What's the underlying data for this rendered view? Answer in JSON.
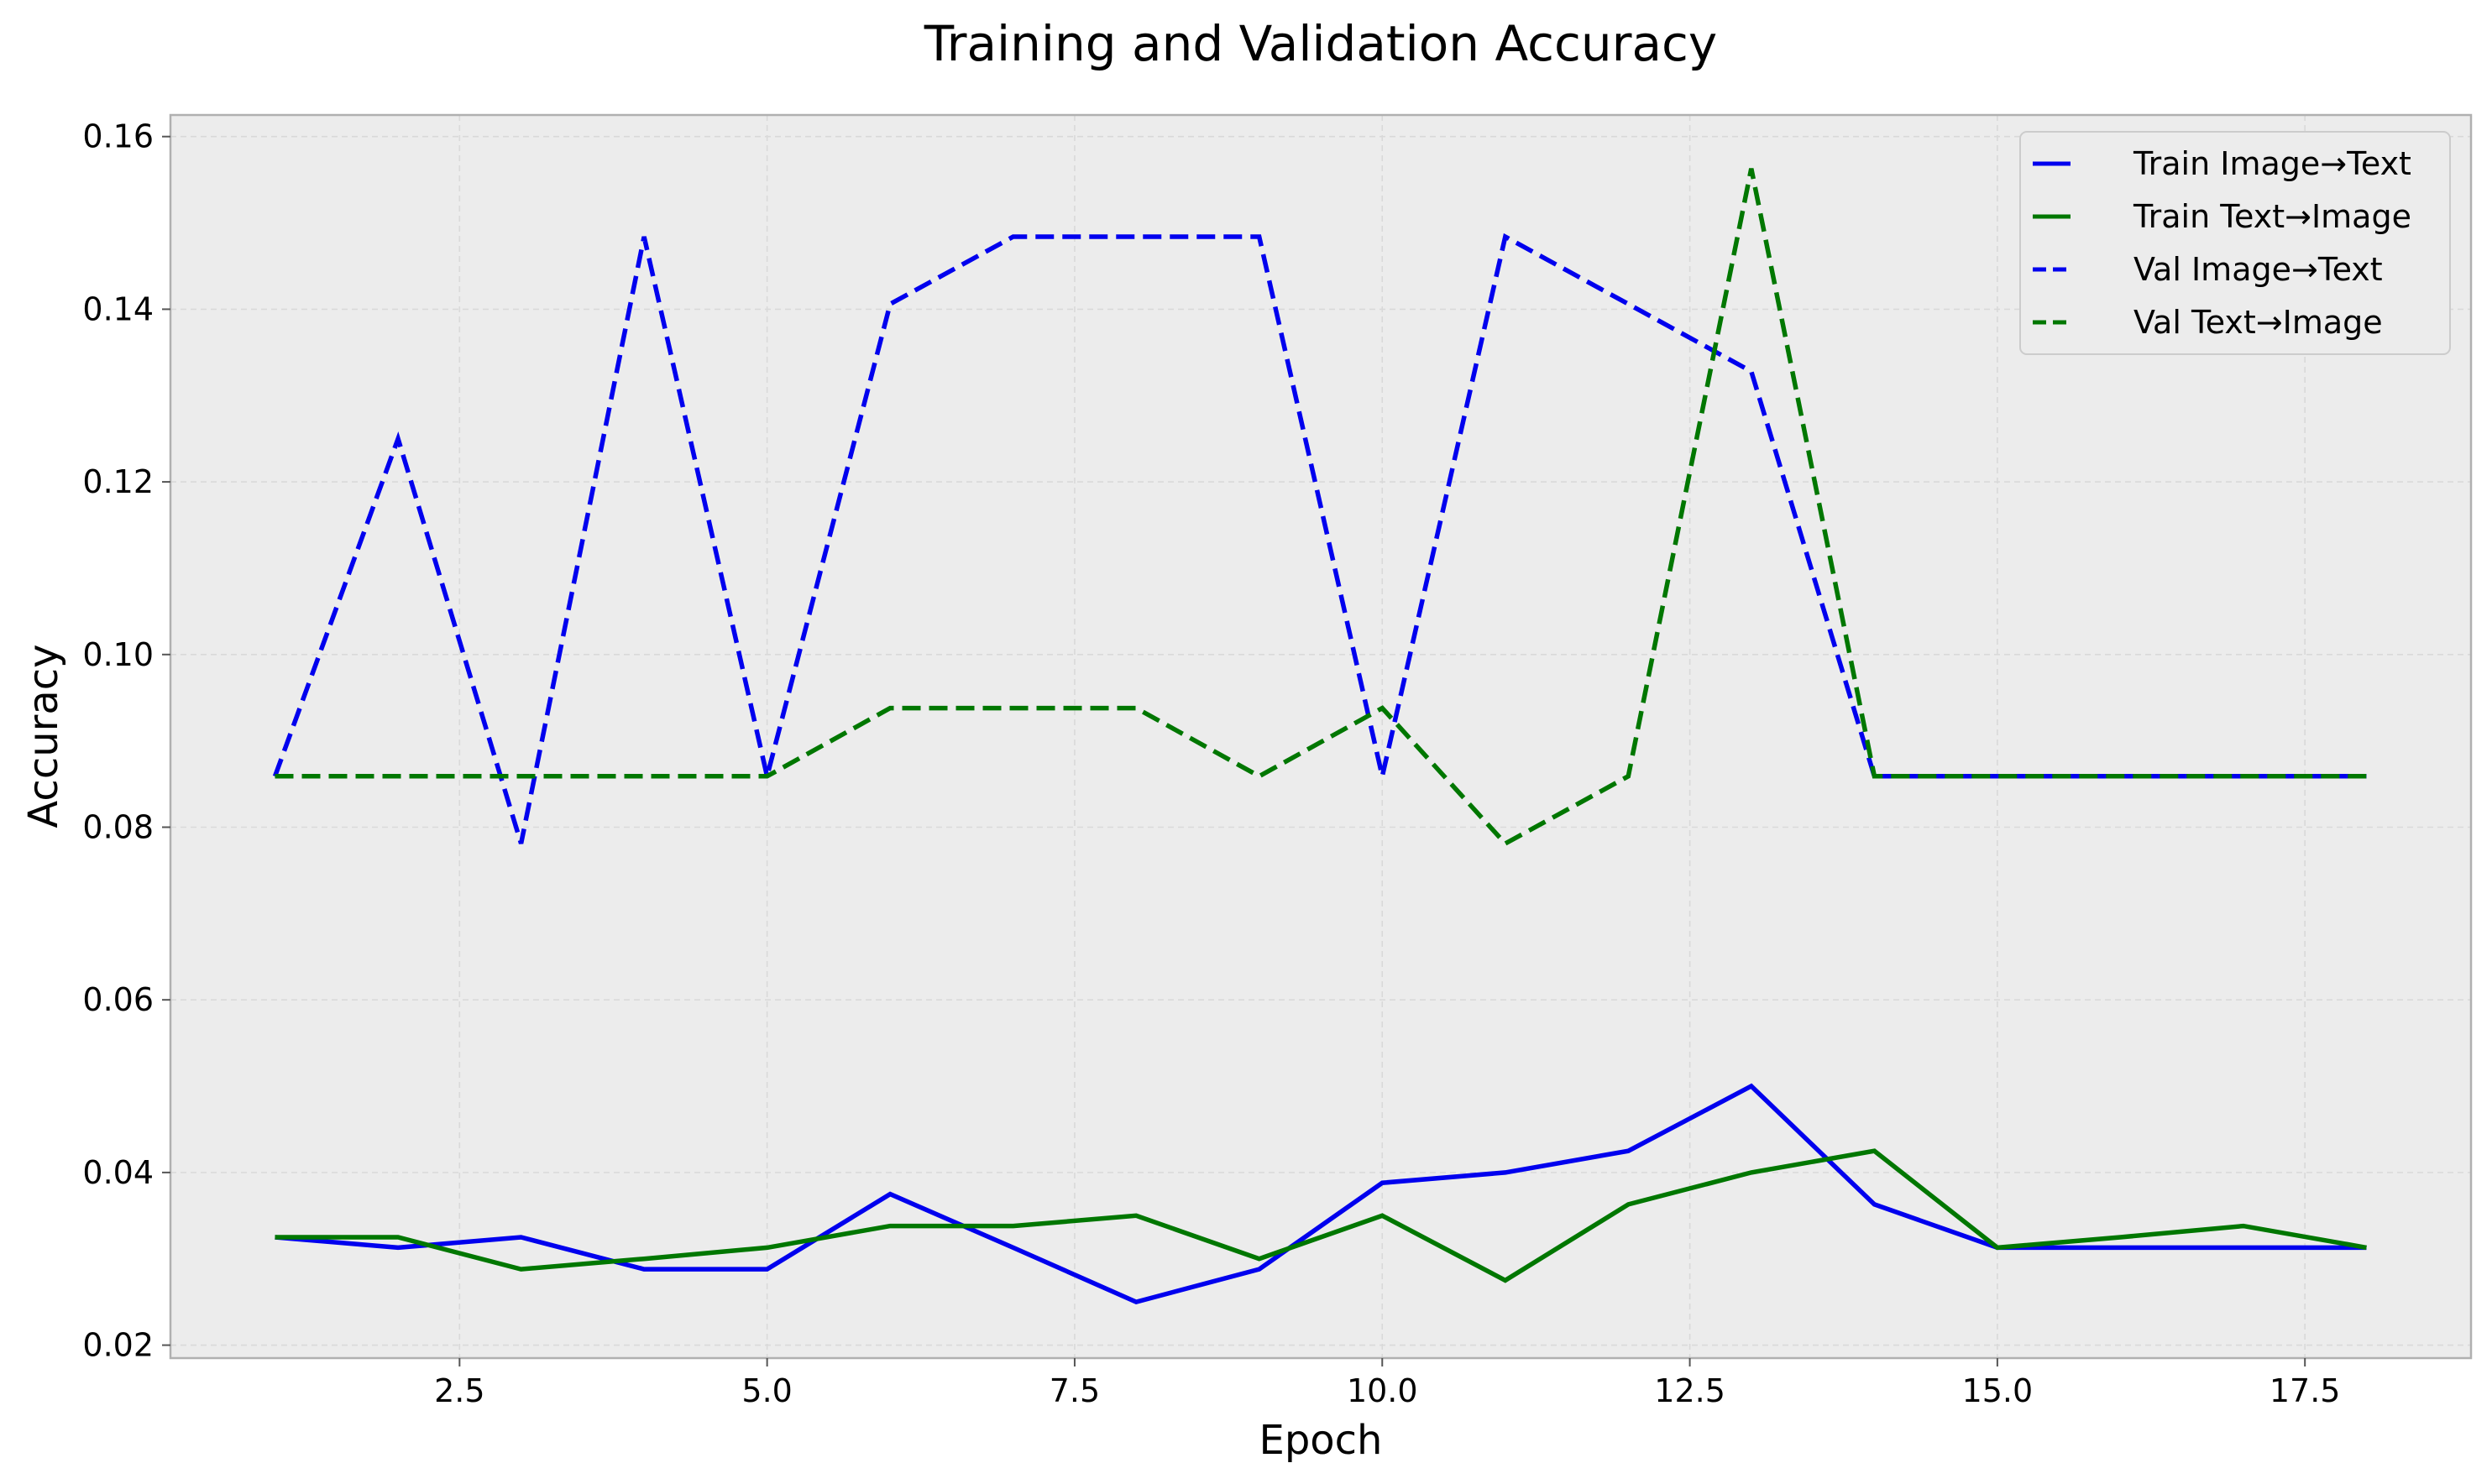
{
  "chart_data": {
    "type": "line",
    "title": "Training and Validation Accuracy",
    "xlabel": "Epoch",
    "ylabel": "Accuracy",
    "xlim": [
      0.15,
      18.85
    ],
    "ylim": [
      0.0185,
      0.1625
    ],
    "xticks": [
      2.5,
      5.0,
      7.5,
      10.0,
      12.5,
      15.0,
      17.5
    ],
    "xtick_labels": [
      "2.5",
      "5.0",
      "7.5",
      "10.0",
      "12.5",
      "15.0",
      "17.5"
    ],
    "yticks": [
      0.02,
      0.04,
      0.06,
      0.08,
      0.1,
      0.12,
      0.14,
      0.16
    ],
    "ytick_labels": [
      "0.02",
      "0.04",
      "0.06",
      "0.08",
      "0.10",
      "0.12",
      "0.14",
      "0.16"
    ],
    "grid": true,
    "legend_position": "top-right",
    "x": [
      1,
      2,
      3,
      4,
      5,
      6,
      7,
      8,
      9,
      10,
      11,
      12,
      13,
      14,
      15,
      16,
      17,
      18
    ],
    "series": [
      {
        "name": "Train Image→Text",
        "color": "#0000ee",
        "dash": "solid",
        "values": [
          0.0325,
          0.0313,
          0.0325,
          0.0288,
          0.0288,
          0.0375,
          0.0313,
          0.025,
          0.0288,
          0.0388,
          0.04,
          0.0425,
          0.05,
          0.0363,
          0.0313,
          0.0313,
          0.0313,
          0.0313
        ]
      },
      {
        "name": "Train Text→Image",
        "color": "#007700",
        "dash": "solid",
        "values": [
          0.0325,
          0.0325,
          0.0288,
          0.03,
          0.0313,
          0.0338,
          0.0338,
          0.035,
          0.03,
          0.035,
          0.0275,
          0.0363,
          0.04,
          0.0425,
          0.0313,
          0.0325,
          0.0338,
          0.0313
        ]
      },
      {
        "name": "Val Image→Text",
        "color": "#0000ee",
        "dash": "dashed",
        "values": [
          0.0859,
          0.125,
          0.0781,
          0.1484,
          0.0859,
          0.1406,
          0.1484,
          0.1484,
          0.1484,
          0.0859,
          0.1484,
          0.1406,
          0.1328,
          0.0859,
          0.0859,
          0.0859,
          0.0859,
          0.0859
        ]
      },
      {
        "name": "Val Text→Image",
        "color": "#007700",
        "dash": "dashed",
        "values": [
          0.0859,
          0.0859,
          0.0859,
          0.0859,
          0.0859,
          0.0938,
          0.0938,
          0.0938,
          0.0859,
          0.0938,
          0.0781,
          0.0859,
          0.1563,
          0.0859,
          0.0859,
          0.0859,
          0.0859,
          0.0859
        ]
      }
    ]
  }
}
